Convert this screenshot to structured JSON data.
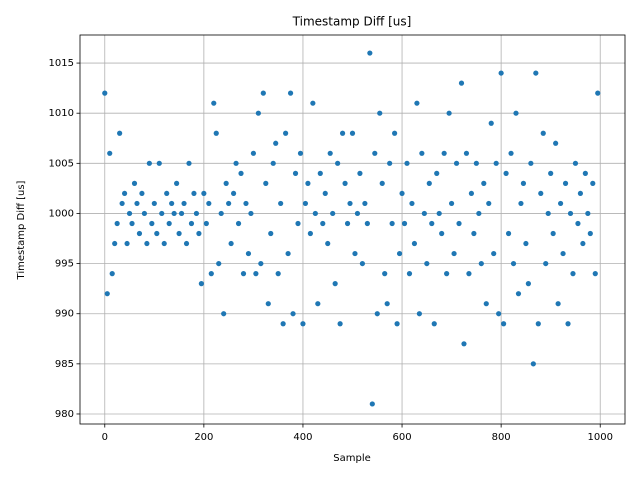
{
  "chart_data": {
    "type": "scatter",
    "title": "Timestamp Diff [us]",
    "x_label": "Sample",
    "y_label": "Timestamp Diff [us]",
    "xlim": [
      -50,
      1050
    ],
    "ylim": [
      979,
      1017.8
    ],
    "xticks": [
      0,
      200,
      400,
      600,
      800,
      1000
    ],
    "yticks": [
      980,
      985,
      990,
      995,
      1000,
      1005,
      1010,
      1015
    ],
    "grid": true,
    "series": [
      {
        "name": "Timestamp Diff",
        "color": "#1f77b4",
        "x": [
          0,
          5,
          10,
          15,
          20,
          25,
          30,
          35,
          40,
          45,
          50,
          55,
          60,
          65,
          70,
          75,
          80,
          85,
          90,
          95,
          100,
          105,
          110,
          115,
          120,
          125,
          130,
          135,
          140,
          145,
          150,
          155,
          160,
          165,
          170,
          175,
          180,
          185,
          190,
          195,
          200,
          205,
          210,
          215,
          220,
          225,
          230,
          235,
          240,
          245,
          250,
          255,
          260,
          265,
          270,
          275,
          280,
          285,
          290,
          295,
          300,
          305,
          310,
          315,
          320,
          325,
          330,
          335,
          340,
          345,
          350,
          355,
          360,
          365,
          370,
          375,
          380,
          385,
          390,
          395,
          400,
          405,
          410,
          415,
          420,
          425,
          430,
          435,
          440,
          445,
          450,
          455,
          460,
          465,
          470,
          475,
          480,
          485,
          490,
          495,
          500,
          505,
          510,
          515,
          520,
          525,
          530,
          535,
          540,
          545,
          550,
          555,
          560,
          565,
          570,
          575,
          580,
          585,
          590,
          595,
          600,
          605,
          610,
          615,
          620,
          625,
          630,
          635,
          640,
          645,
          650,
          655,
          660,
          665,
          670,
          675,
          680,
          685,
          690,
          695,
          700,
          705,
          710,
          715,
          720,
          725,
          730,
          735,
          740,
          745,
          750,
          755,
          760,
          765,
          770,
          775,
          780,
          785,
          790,
          795,
          800,
          805,
          810,
          815,
          820,
          825,
          830,
          835,
          840,
          845,
          850,
          855,
          860,
          865,
          870,
          875,
          880,
          885,
          890,
          895,
          900,
          905,
          910,
          915,
          920,
          925,
          930,
          935,
          940,
          945,
          950,
          955,
          960,
          965,
          970,
          975,
          980,
          985,
          990,
          995
        ],
        "values": [
          1012,
          992,
          1006,
          994,
          997,
          999,
          1008,
          1001,
          1002,
          997,
          1000,
          999,
          1003,
          1001,
          998,
          1002,
          1000,
          997,
          1005,
          999,
          1001,
          998,
          1005,
          1000,
          997,
          1002,
          999,
          1001,
          1000,
          1003,
          998,
          1000,
          1001,
          997,
          1005,
          999,
          1002,
          1000,
          998,
          993,
          1002,
          999,
          1001,
          994,
          1011,
          1008,
          995,
          1000,
          990,
          1003,
          1001,
          997,
          1002,
          1005,
          999,
          1004,
          994,
          1001,
          996,
          1000,
          1006,
          994,
          1010,
          995,
          1012,
          1003,
          991,
          998,
          1005,
          1007,
          994,
          1001,
          989,
          1008,
          996,
          1012,
          990,
          1004,
          999,
          1006,
          989,
          1001,
          1003,
          998,
          1011,
          1000,
          991,
          1004,
          999,
          1002,
          997,
          1006,
          1000,
          993,
          1005,
          989,
          1008,
          1003,
          999,
          1001,
          1008,
          996,
          1000,
          1004,
          995,
          1001,
          999,
          1016,
          981,
          1006,
          990,
          1010,
          1003,
          994,
          991,
          1005,
          999,
          1008,
          989,
          996,
          1002,
          999,
          1005,
          994,
          1001,
          997,
          1011,
          990,
          1006,
          1000,
          995,
          1003,
          999,
          989,
          1004,
          1000,
          998,
          1006,
          994,
          1010,
          1001,
          996,
          1005,
          999,
          1013,
          987,
          1006,
          994,
          1002,
          998,
          1005,
          1000,
          995,
          1003,
          991,
          1001,
          1009,
          996,
          1005,
          990,
          1014,
          989,
          1004,
          998,
          1006,
          995,
          1010,
          992,
          1001,
          1003,
          997,
          993,
          1005,
          985,
          1014,
          989,
          1002,
          1008,
          995,
          1000,
          1004,
          998,
          1007,
          991,
          1001,
          996,
          1003,
          989,
          1000,
          994,
          1005,
          999,
          1002,
          997,
          1004,
          1000,
          998,
          1003,
          994,
          1012
        ]
      }
    ]
  }
}
